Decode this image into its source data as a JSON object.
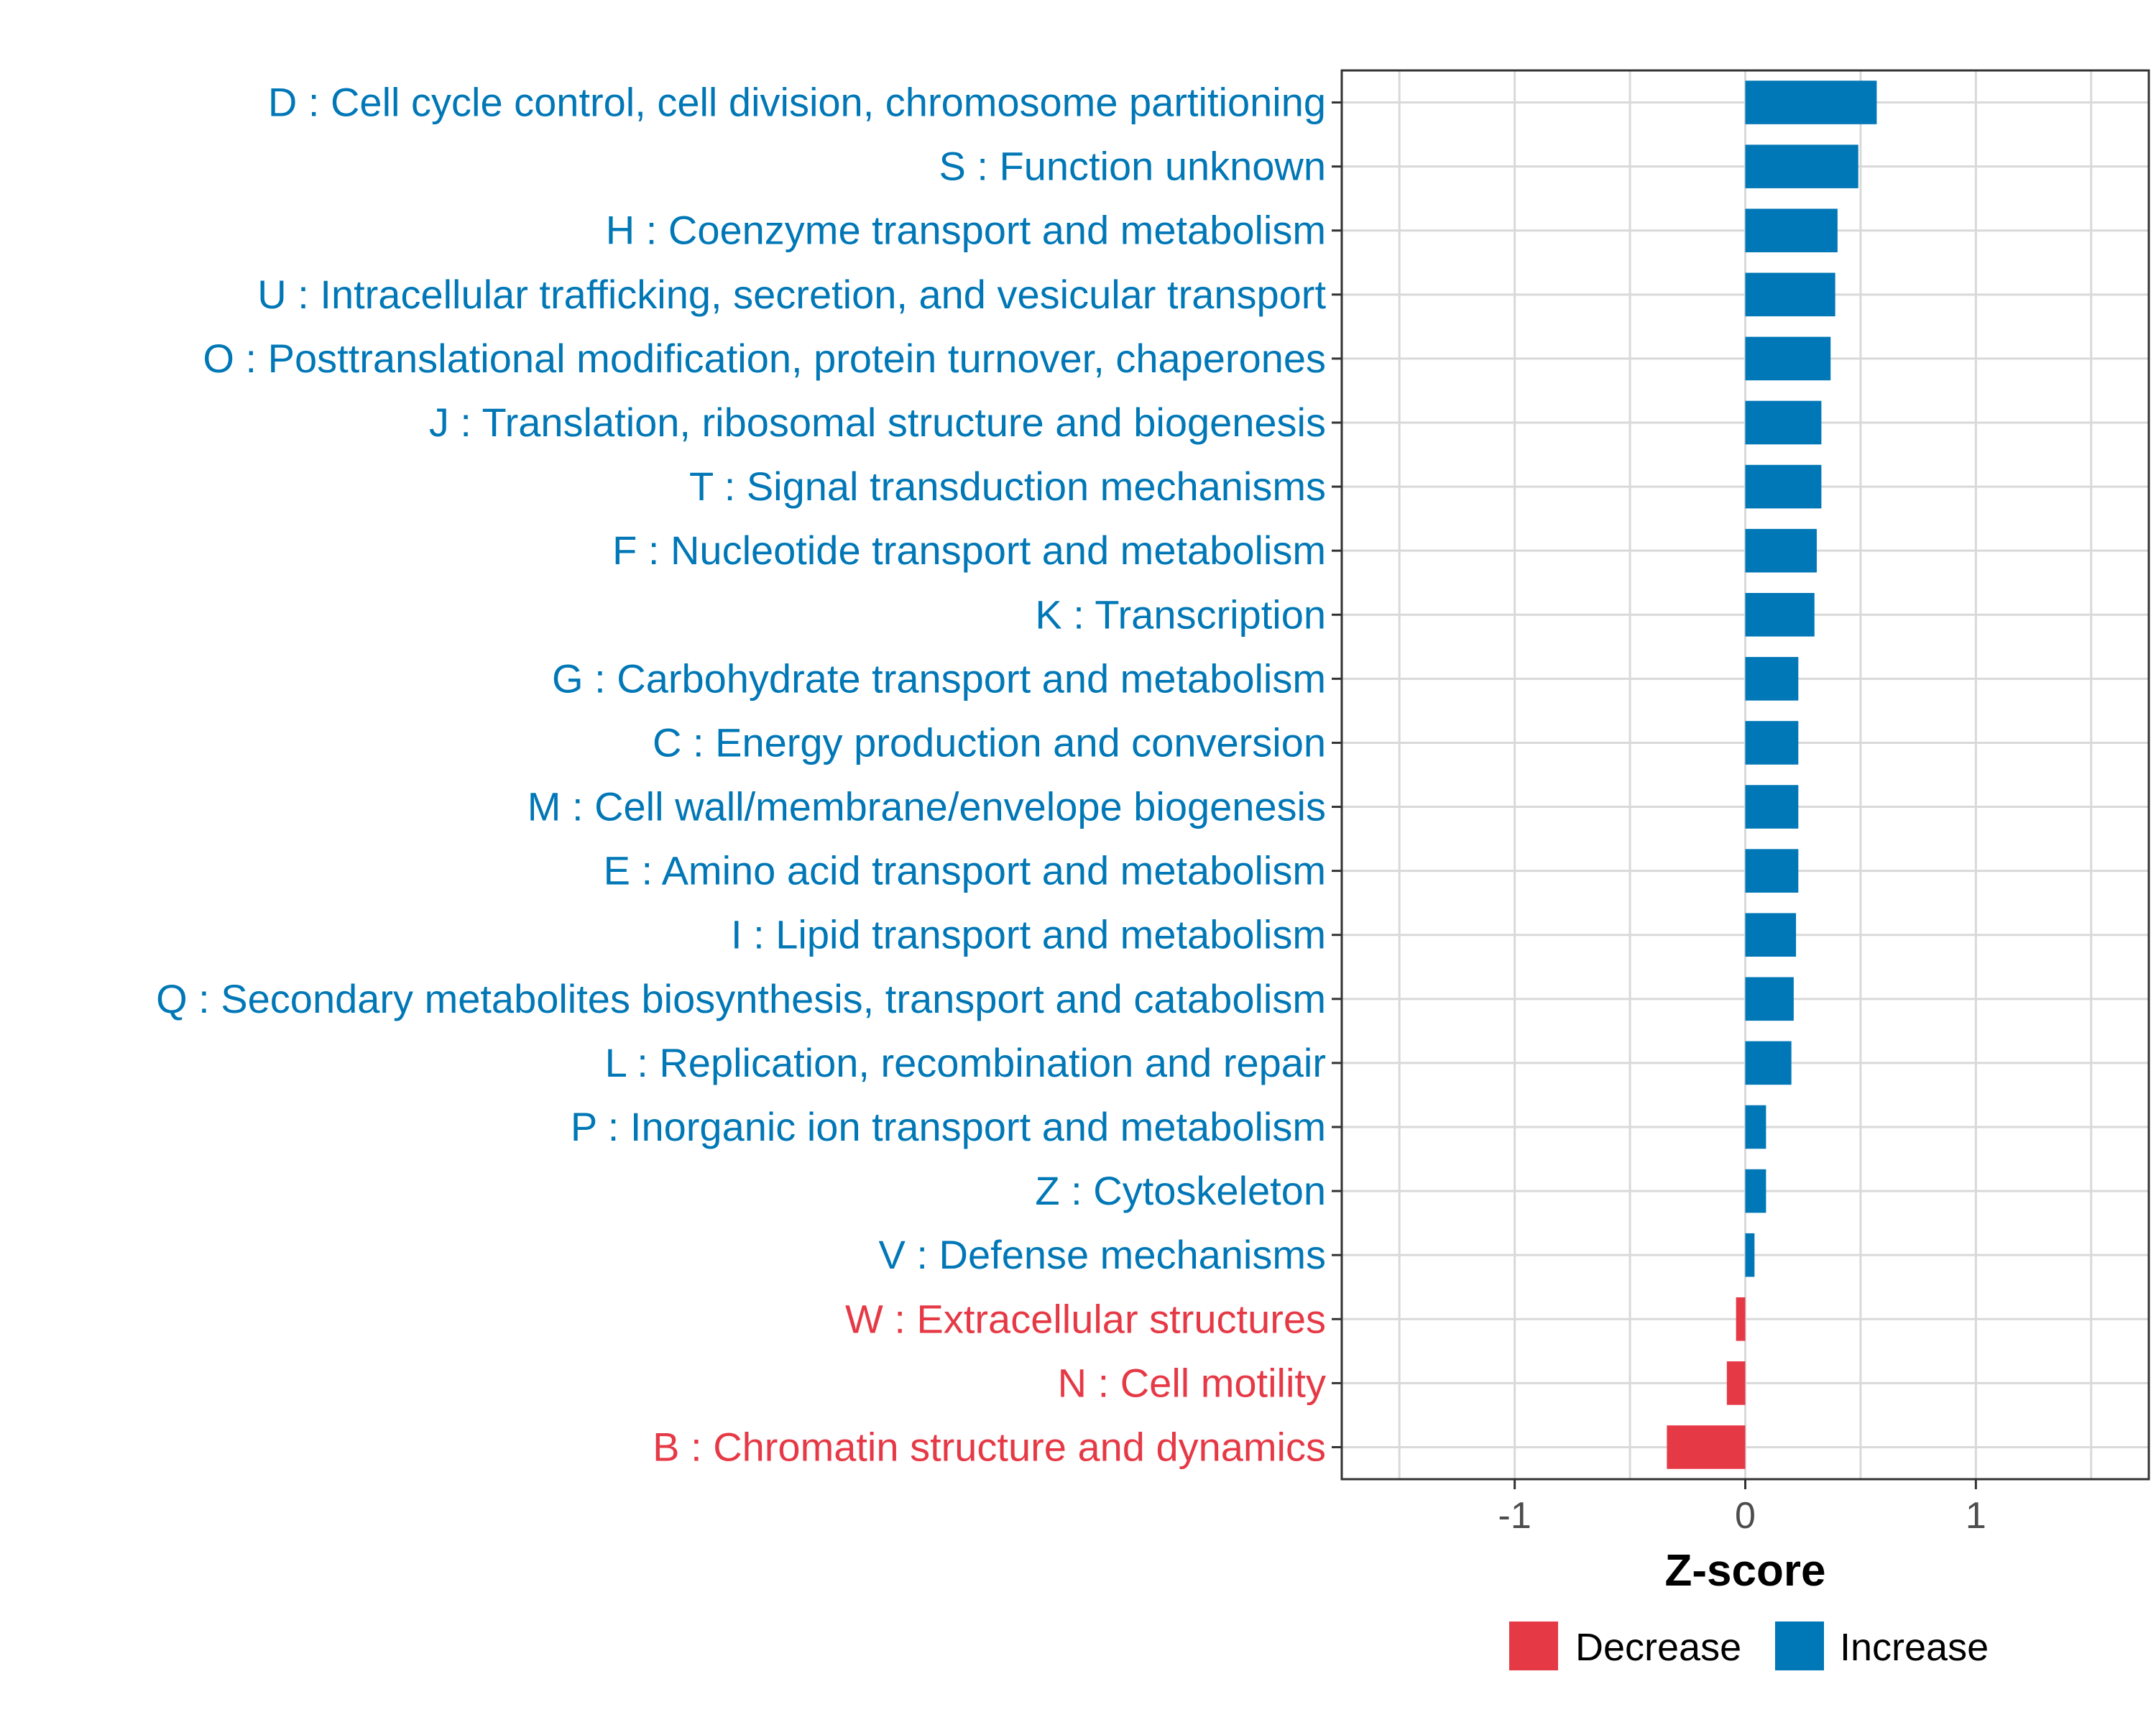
{
  "chart_data": {
    "type": "bar",
    "orientation": "horizontal",
    "xlabel": "Z-score",
    "ylabel": "",
    "xlim": [
      -1.75,
      1.75
    ],
    "xticks": [
      -1,
      0,
      1
    ],
    "xtick_labels": [
      "-1",
      "0",
      "1"
    ],
    "grid": true,
    "legend_position": "bottom",
    "legend": [
      {
        "label": "Decrease",
        "color": "#e63946"
      },
      {
        "label": "Increase",
        "color": "#0077b6"
      }
    ],
    "categories": [
      "D : Cell cycle control, cell division, chromosome partitioning",
      "S : Function unknown",
      "H : Coenzyme transport and metabolism",
      "U : Intracellular trafficking, secretion, and vesicular transport",
      "O : Posttranslational modification, protein turnover, chaperones",
      "J : Translation, ribosomal structure and biogenesis",
      "T : Signal transduction mechanisms",
      "F : Nucleotide transport and metabolism",
      "K : Transcription",
      "G : Carbohydrate transport and metabolism",
      "C : Energy production and conversion",
      "M : Cell wall/membrane/envelope biogenesis",
      "E : Amino acid transport and metabolism",
      "I : Lipid transport and metabolism",
      "Q : Secondary metabolites biosynthesis, transport and catabolism",
      "L : Replication, recombination and repair",
      "P : Inorganic ion transport and metabolism",
      "Z : Cytoskeleton",
      "V : Defense mechanisms",
      "W : Extracellular structures",
      "N : Cell motility",
      "B : Chromatin structure and dynamics"
    ],
    "values": [
      0.57,
      0.49,
      0.4,
      0.39,
      0.37,
      0.33,
      0.33,
      0.31,
      0.3,
      0.23,
      0.23,
      0.23,
      0.23,
      0.22,
      0.21,
      0.2,
      0.09,
      0.09,
      0.04,
      -0.04,
      -0.08,
      -0.34
    ],
    "directions": [
      "Increase",
      "Increase",
      "Increase",
      "Increase",
      "Increase",
      "Increase",
      "Increase",
      "Increase",
      "Increase",
      "Increase",
      "Increase",
      "Increase",
      "Increase",
      "Increase",
      "Increase",
      "Increase",
      "Increase",
      "Increase",
      "Increase",
      "Decrease",
      "Decrease",
      "Decrease"
    ]
  }
}
